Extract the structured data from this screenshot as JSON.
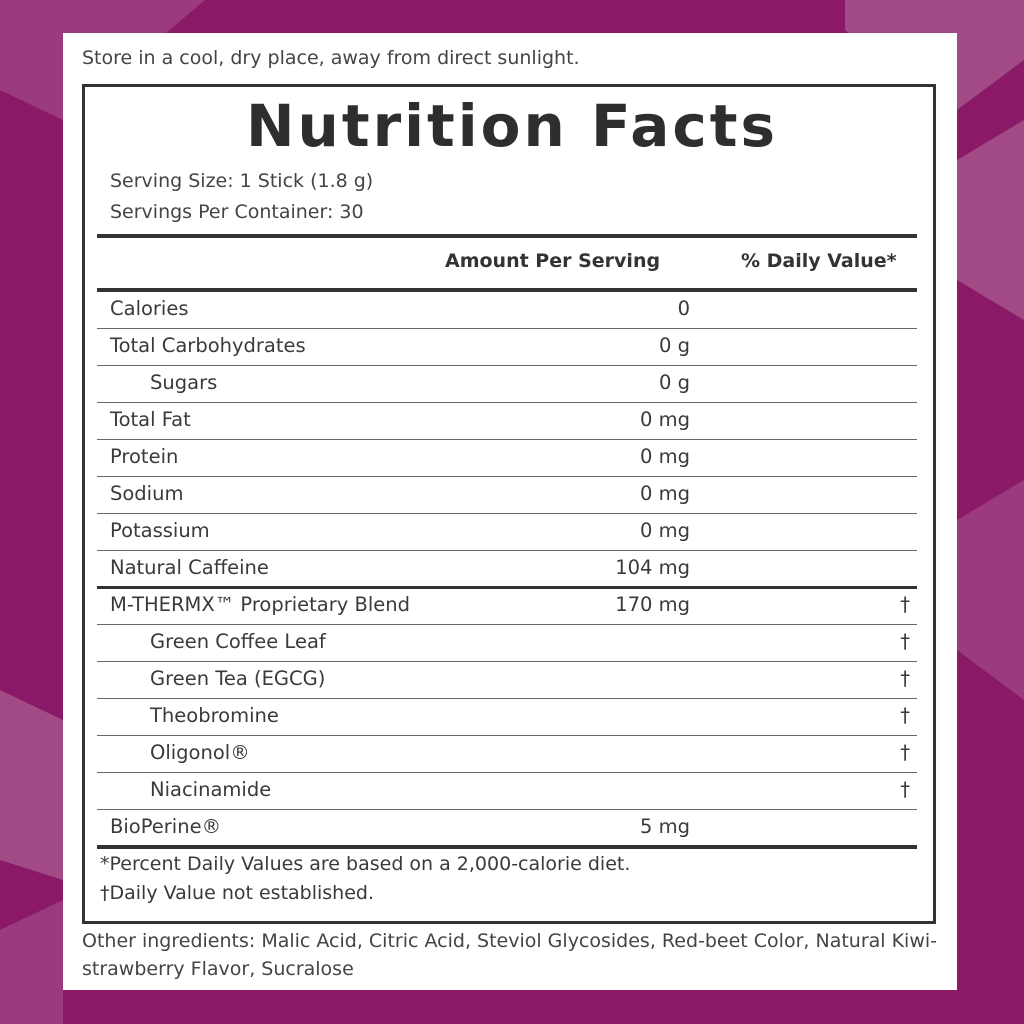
{
  "storage_note": "Store in a cool, dry place, away from direct sunlight.",
  "label": {
    "title": "Nutrition Facts",
    "serving_size": "Serving Size: 1 Stick (1.8 g)",
    "servings_per_container": "Servings Per Container: 30",
    "columns": [
      "Amount Per Serving",
      "% Daily Value*"
    ],
    "rows": [
      {
        "name": "Calories",
        "amount": "0"
      },
      {
        "name": "Total Carbohydrates",
        "amount": "0 g"
      },
      {
        "name": "Sugars",
        "amount": "0 g"
      },
      {
        "name": "Total Fat",
        "amount": "0 mg"
      },
      {
        "name": "Protein",
        "amount": "0 mg"
      },
      {
        "name": "Sodium",
        "amount": "0 mg"
      },
      {
        "name": "Potassium",
        "amount": "0 mg"
      },
      {
        "name": "Natural Caffeine",
        "amount": "104 mg"
      },
      {
        "name": "M-THERMX™ Proprietary Blend",
        "amount": "170 mg",
        "daily_value": "†"
      },
      {
        "name": "Green Coffee Leaf",
        "daily_value": "†"
      },
      {
        "name": "Green Tea (EGCG)",
        "daily_value": "†"
      },
      {
        "name": "Theobromine",
        "daily_value": "†"
      },
      {
        "name": "Oligonol®",
        "daily_value": "†"
      },
      {
        "name": "Niacinamide",
        "daily_value": "†"
      },
      {
        "name": "BioPerine®",
        "amount": "5 mg"
      }
    ],
    "footnotes": [
      "*Percent Daily Values are based on a 2,000-calorie diet.",
      "†Daily Value not established."
    ]
  },
  "other_ingredients": "Other ingredients: Malic Acid, Citric Acid, Steviol Glycosides, Red-beet Color, Natural Kiwi-strawberry Flavor, Sucralose"
}
